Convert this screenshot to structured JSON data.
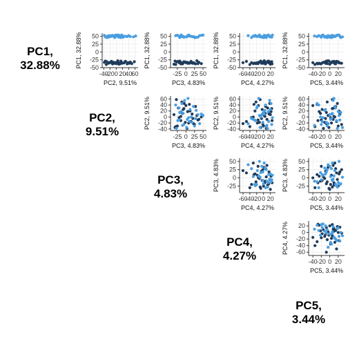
{
  "chart_data": {
    "type": "scatter",
    "layout": "pairs-matrix",
    "colors": {
      "dark": "#1f3b5a",
      "light": "#4a9ee0",
      "grid": "#ebebeb",
      "axis": "#333333"
    },
    "diagonal": [
      {
        "name": "PC1",
        "line1": "PC1,",
        "line2": "32.88%"
      },
      {
        "name": "PC2",
        "line1": "PC2,",
        "line2": "9.51%"
      },
      {
        "name": "PC3",
        "line1": "PC3,",
        "line2": "4.83%"
      },
      {
        "name": "PC4",
        "line1": "PC4,",
        "line2": "4.27%"
      },
      {
        "name": "PC5",
        "line1": "PC5,",
        "line2": "3.44%"
      }
    ],
    "axes": {
      "PC1": {
        "label": "PC1, 32.88%",
        "range": [
          -50,
          60
        ],
        "ticks": [
          -50,
          -25,
          0,
          25,
          50
        ],
        "tick_labels": [
          "-50",
          "-25",
          "0",
          "25",
          "50"
        ]
      },
      "PC2": {
        "label": "PC2, 9.51%",
        "range": [
          -45,
          70
        ],
        "ticks": [
          -40,
          -20,
          0,
          20,
          40,
          60
        ],
        "tick_labels": [
          "-40",
          "-20",
          "0",
          "20",
          "40",
          "60"
        ]
      },
      "PC3": {
        "label": "PC3, 4.83%",
        "range": [
          -45,
          60
        ],
        "ticks": [
          -25,
          0,
          25,
          50
        ],
        "tick_labels": [
          "-25",
          "0",
          "25",
          "50"
        ]
      },
      "PC4": {
        "label": "PC4, 4.27%",
        "range": [
          -70,
          35
        ],
        "ticks": [
          -60,
          -40,
          -20,
          0,
          20
        ],
        "tick_labels": [
          "-60",
          "-40",
          "-20",
          "0",
          "20"
        ]
      },
      "PC5": {
        "label": "PC5, 3.44%",
        "range": [
          -50,
          35
        ],
        "ticks": [
          -40,
          -20,
          0,
          20
        ],
        "tick_labels": [
          "-40",
          "-20",
          "0",
          "20"
        ]
      }
    },
    "panels": [
      {
        "x": "PC2",
        "y": "PC1"
      },
      {
        "x": "PC3",
        "y": "PC1"
      },
      {
        "x": "PC4",
        "y": "PC1"
      },
      {
        "x": "PC5",
        "y": "PC1"
      },
      {
        "x": "PC3",
        "y": "PC2"
      },
      {
        "x": "PC4",
        "y": "PC2"
      },
      {
        "x": "PC5",
        "y": "PC2"
      },
      {
        "x": "PC4",
        "y": "PC3"
      },
      {
        "x": "PC5",
        "y": "PC3"
      },
      {
        "x": "PC5",
        "y": "PC4"
      }
    ],
    "groups": [
      "dark",
      "light"
    ],
    "points": [
      {
        "PC1": -38,
        "PC2": 12,
        "PC3": -10,
        "PC4": 5,
        "PC5": -22,
        "g": "dark"
      },
      {
        "PC1": -34,
        "PC2": -20,
        "PC3": 8,
        "PC4": -18,
        "PC5": 4,
        "g": "dark"
      },
      {
        "PC1": -30,
        "PC2": 30,
        "PC3": -22,
        "PC4": 12,
        "PC5": 10,
        "g": "dark"
      },
      {
        "PC1": -36,
        "PC2": -5,
        "PC3": 20,
        "PC4": -6,
        "PC5": -10,
        "g": "dark"
      },
      {
        "PC1": -32,
        "PC2": 45,
        "PC3": -5,
        "PC4": 18,
        "PC5": 18,
        "g": "dark"
      },
      {
        "PC1": -40,
        "PC2": -32,
        "PC3": -30,
        "PC4": -40,
        "PC5": -35,
        "g": "dark"
      },
      {
        "PC1": -28,
        "PC2": 5,
        "PC3": 32,
        "PC4": 2,
        "PC5": -4,
        "g": "dark"
      },
      {
        "PC1": -35,
        "PC2": 20,
        "PC3": 12,
        "PC4": -25,
        "PC5": 22,
        "g": "dark"
      },
      {
        "PC1": -38,
        "PC2": -12,
        "PC3": -15,
        "PC4": 25,
        "PC5": -28,
        "g": "dark"
      },
      {
        "PC1": -31,
        "PC2": 58,
        "PC3": -28,
        "PC4": -10,
        "PC5": 6,
        "g": "dark"
      },
      {
        "PC1": -33,
        "PC2": -38,
        "PC3": 3,
        "PC4": 8,
        "PC5": -15,
        "g": "dark"
      },
      {
        "PC1": -37,
        "PC2": 0,
        "PC3": 45,
        "PC4": -30,
        "PC5": 12,
        "g": "dark"
      },
      {
        "PC1": -29,
        "PC2": 15,
        "PC3": -18,
        "PC4": 15,
        "PC5": -8,
        "g": "dark"
      },
      {
        "PC1": -36,
        "PC2": -25,
        "PC3": 25,
        "PC4": -2,
        "PC5": 28,
        "g": "dark"
      },
      {
        "PC1": -34,
        "PC2": 38,
        "PC3": 0,
        "PC4": -15,
        "PC5": -40,
        "g": "dark"
      },
      {
        "PC1": -39,
        "PC2": 8,
        "PC3": -35,
        "PC4": 20,
        "PC5": 0,
        "g": "dark"
      },
      {
        "PC1": -30,
        "PC2": -15,
        "PC3": 15,
        "PC4": -50,
        "PC5": 16,
        "g": "dark"
      },
      {
        "PC1": -35,
        "PC2": 25,
        "PC3": -8,
        "PC4": -4,
        "PC5": -18,
        "g": "dark"
      },
      {
        "PC1": -33,
        "PC2": -8,
        "PC3": 38,
        "PC4": 10,
        "PC5": 8,
        "g": "dark"
      },
      {
        "PC1": -37,
        "PC2": 50,
        "PC3": -12,
        "PC4": -22,
        "PC5": -6,
        "g": "dark"
      },
      {
        "PC1": -31,
        "PC2": -30,
        "PC3": -25,
        "PC4": 0,
        "PC5": 20,
        "g": "dark"
      },
      {
        "PC1": -36,
        "PC2": 18,
        "PC3": 5,
        "PC4": 22,
        "PC5": -25,
        "g": "dark"
      },
      {
        "PC1": -34,
        "PC2": -2,
        "PC3": -20,
        "PC4": -35,
        "PC5": 2,
        "g": "dark"
      },
      {
        "PC1": -38,
        "PC2": 35,
        "PC3": 28,
        "PC4": 6,
        "PC5": 14,
        "g": "dark"
      },
      {
        "PC1": -32,
        "PC2": -18,
        "PC3": -2,
        "PC4": -12,
        "PC5": -12,
        "g": "dark"
      },
      {
        "PC1": -35,
        "PC2": 10,
        "PC3": 18,
        "PC4": 16,
        "PC5": 24,
        "g": "dark"
      },
      {
        "PC1": -29,
        "PC2": -35,
        "PC3": -32,
        "PC4": -8,
        "PC5": -2,
        "g": "dark"
      },
      {
        "PC1": -36,
        "PC2": 42,
        "PC3": 10,
        "PC4": -28,
        "PC5": -30,
        "g": "dark"
      },
      {
        "PC1": -33,
        "PC2": 2,
        "PC3": -15,
        "PC4": 4,
        "PC5": 10,
        "g": "dark"
      },
      {
        "PC1": -37,
        "PC2": -10,
        "PC3": 35,
        "PC4": -16,
        "PC5": -20,
        "g": "dark"
      },
      {
        "PC1": -31,
        "PC2": 28,
        "PC3": -6,
        "PC4": 24,
        "PC5": 6,
        "g": "dark"
      },
      {
        "PC1": -34,
        "PC2": -22,
        "PC3": 22,
        "PC4": -60,
        "PC5": -8,
        "g": "dark"
      },
      {
        "PC1": 48,
        "PC2": 12,
        "PC3": -8,
        "PC4": -2,
        "PC5": 6,
        "g": "light"
      },
      {
        "PC1": 52,
        "PC2": -15,
        "PC3": 10,
        "PC4": 15,
        "PC5": -18,
        "g": "light"
      },
      {
        "PC1": 50,
        "PC2": 30,
        "PC3": -20,
        "PC4": -20,
        "PC5": 14,
        "g": "light"
      },
      {
        "PC1": 46,
        "PC2": -30,
        "PC3": 25,
        "PC4": 8,
        "PC5": -6,
        "g": "light"
      },
      {
        "PC1": 54,
        "PC2": 5,
        "PC3": 50,
        "PC4": -12,
        "PC5": 22,
        "g": "light"
      },
      {
        "PC1": 49,
        "PC2": 45,
        "PC3": -12,
        "PC4": 22,
        "PC5": -30,
        "g": "light"
      },
      {
        "PC1": 51,
        "PC2": -8,
        "PC3": 4,
        "PC4": -30,
        "PC5": 2,
        "g": "light"
      },
      {
        "PC1": 47,
        "PC2": 22,
        "PC3": 30,
        "PC4": 4,
        "PC5": -12,
        "g": "light"
      },
      {
        "PC1": 53,
        "PC2": -38,
        "PC3": -28,
        "PC4": 12,
        "PC5": 18,
        "g": "light"
      },
      {
        "PC1": 50,
        "PC2": 0,
        "PC3": 16,
        "PC4": -8,
        "PC5": -22,
        "g": "light"
      },
      {
        "PC1": 48,
        "PC2": 55,
        "PC3": -4,
        "PC4": 18,
        "PC5": 8,
        "g": "light"
      },
      {
        "PC1": 52,
        "PC2": -22,
        "PC3": 40,
        "PC4": -45,
        "PC5": -4,
        "g": "light"
      },
      {
        "PC1": 46,
        "PC2": 15,
        "PC3": -18,
        "PC4": 0,
        "PC5": 26,
        "g": "light"
      },
      {
        "PC1": 54,
        "PC2": -2,
        "PC3": 8,
        "PC4": 26,
        "PC5": -16,
        "g": "light"
      },
      {
        "PC1": 49,
        "PC2": 35,
        "PC3": 22,
        "PC4": -18,
        "PC5": 12,
        "g": "light"
      },
      {
        "PC1": 51,
        "PC2": -28,
        "PC3": -10,
        "PC4": 10,
        "PC5": -36,
        "g": "light"
      },
      {
        "PC1": 47,
        "PC2": 8,
        "PC3": 35,
        "PC4": -5,
        "PC5": 0,
        "g": "light"
      },
      {
        "PC1": 53,
        "PC2": -12,
        "PC3": -24,
        "PC4": -24,
        "PC5": 16,
        "g": "light"
      },
      {
        "PC1": 50,
        "PC2": 25,
        "PC3": 12,
        "PC4": 20,
        "PC5": -10,
        "g": "light"
      },
      {
        "PC1": 48,
        "PC2": -35,
        "PC3": 2,
        "PC4": -10,
        "PC5": 30,
        "g": "light"
      },
      {
        "PC1": 52,
        "PC2": 40,
        "PC3": -30,
        "PC4": 6,
        "PC5": -26,
        "g": "light"
      },
      {
        "PC1": 46,
        "PC2": -5,
        "PC3": 28,
        "PC4": -35,
        "PC5": 4,
        "g": "light"
      },
      {
        "PC1": 54,
        "PC2": 18,
        "PC3": -14,
        "PC4": 14,
        "PC5": 20,
        "g": "light"
      },
      {
        "PC1": 49,
        "PC2": -18,
        "PC3": 18,
        "PC4": -2,
        "PC5": -8,
        "g": "light"
      },
      {
        "PC1": 51,
        "PC2": 62,
        "PC3": 6,
        "PC4": -14,
        "PC5": 10,
        "g": "light"
      },
      {
        "PC1": 47,
        "PC2": -25,
        "PC3": -6,
        "PC4": 24,
        "PC5": -20,
        "g": "light"
      },
      {
        "PC1": 53,
        "PC2": 10,
        "PC3": 45,
        "PC4": 2,
        "PC5": 6,
        "g": "light"
      },
      {
        "PC1": 50,
        "PC2": -10,
        "PC3": -20,
        "PC4": -26,
        "PC5": 24,
        "g": "light"
      }
    ]
  }
}
